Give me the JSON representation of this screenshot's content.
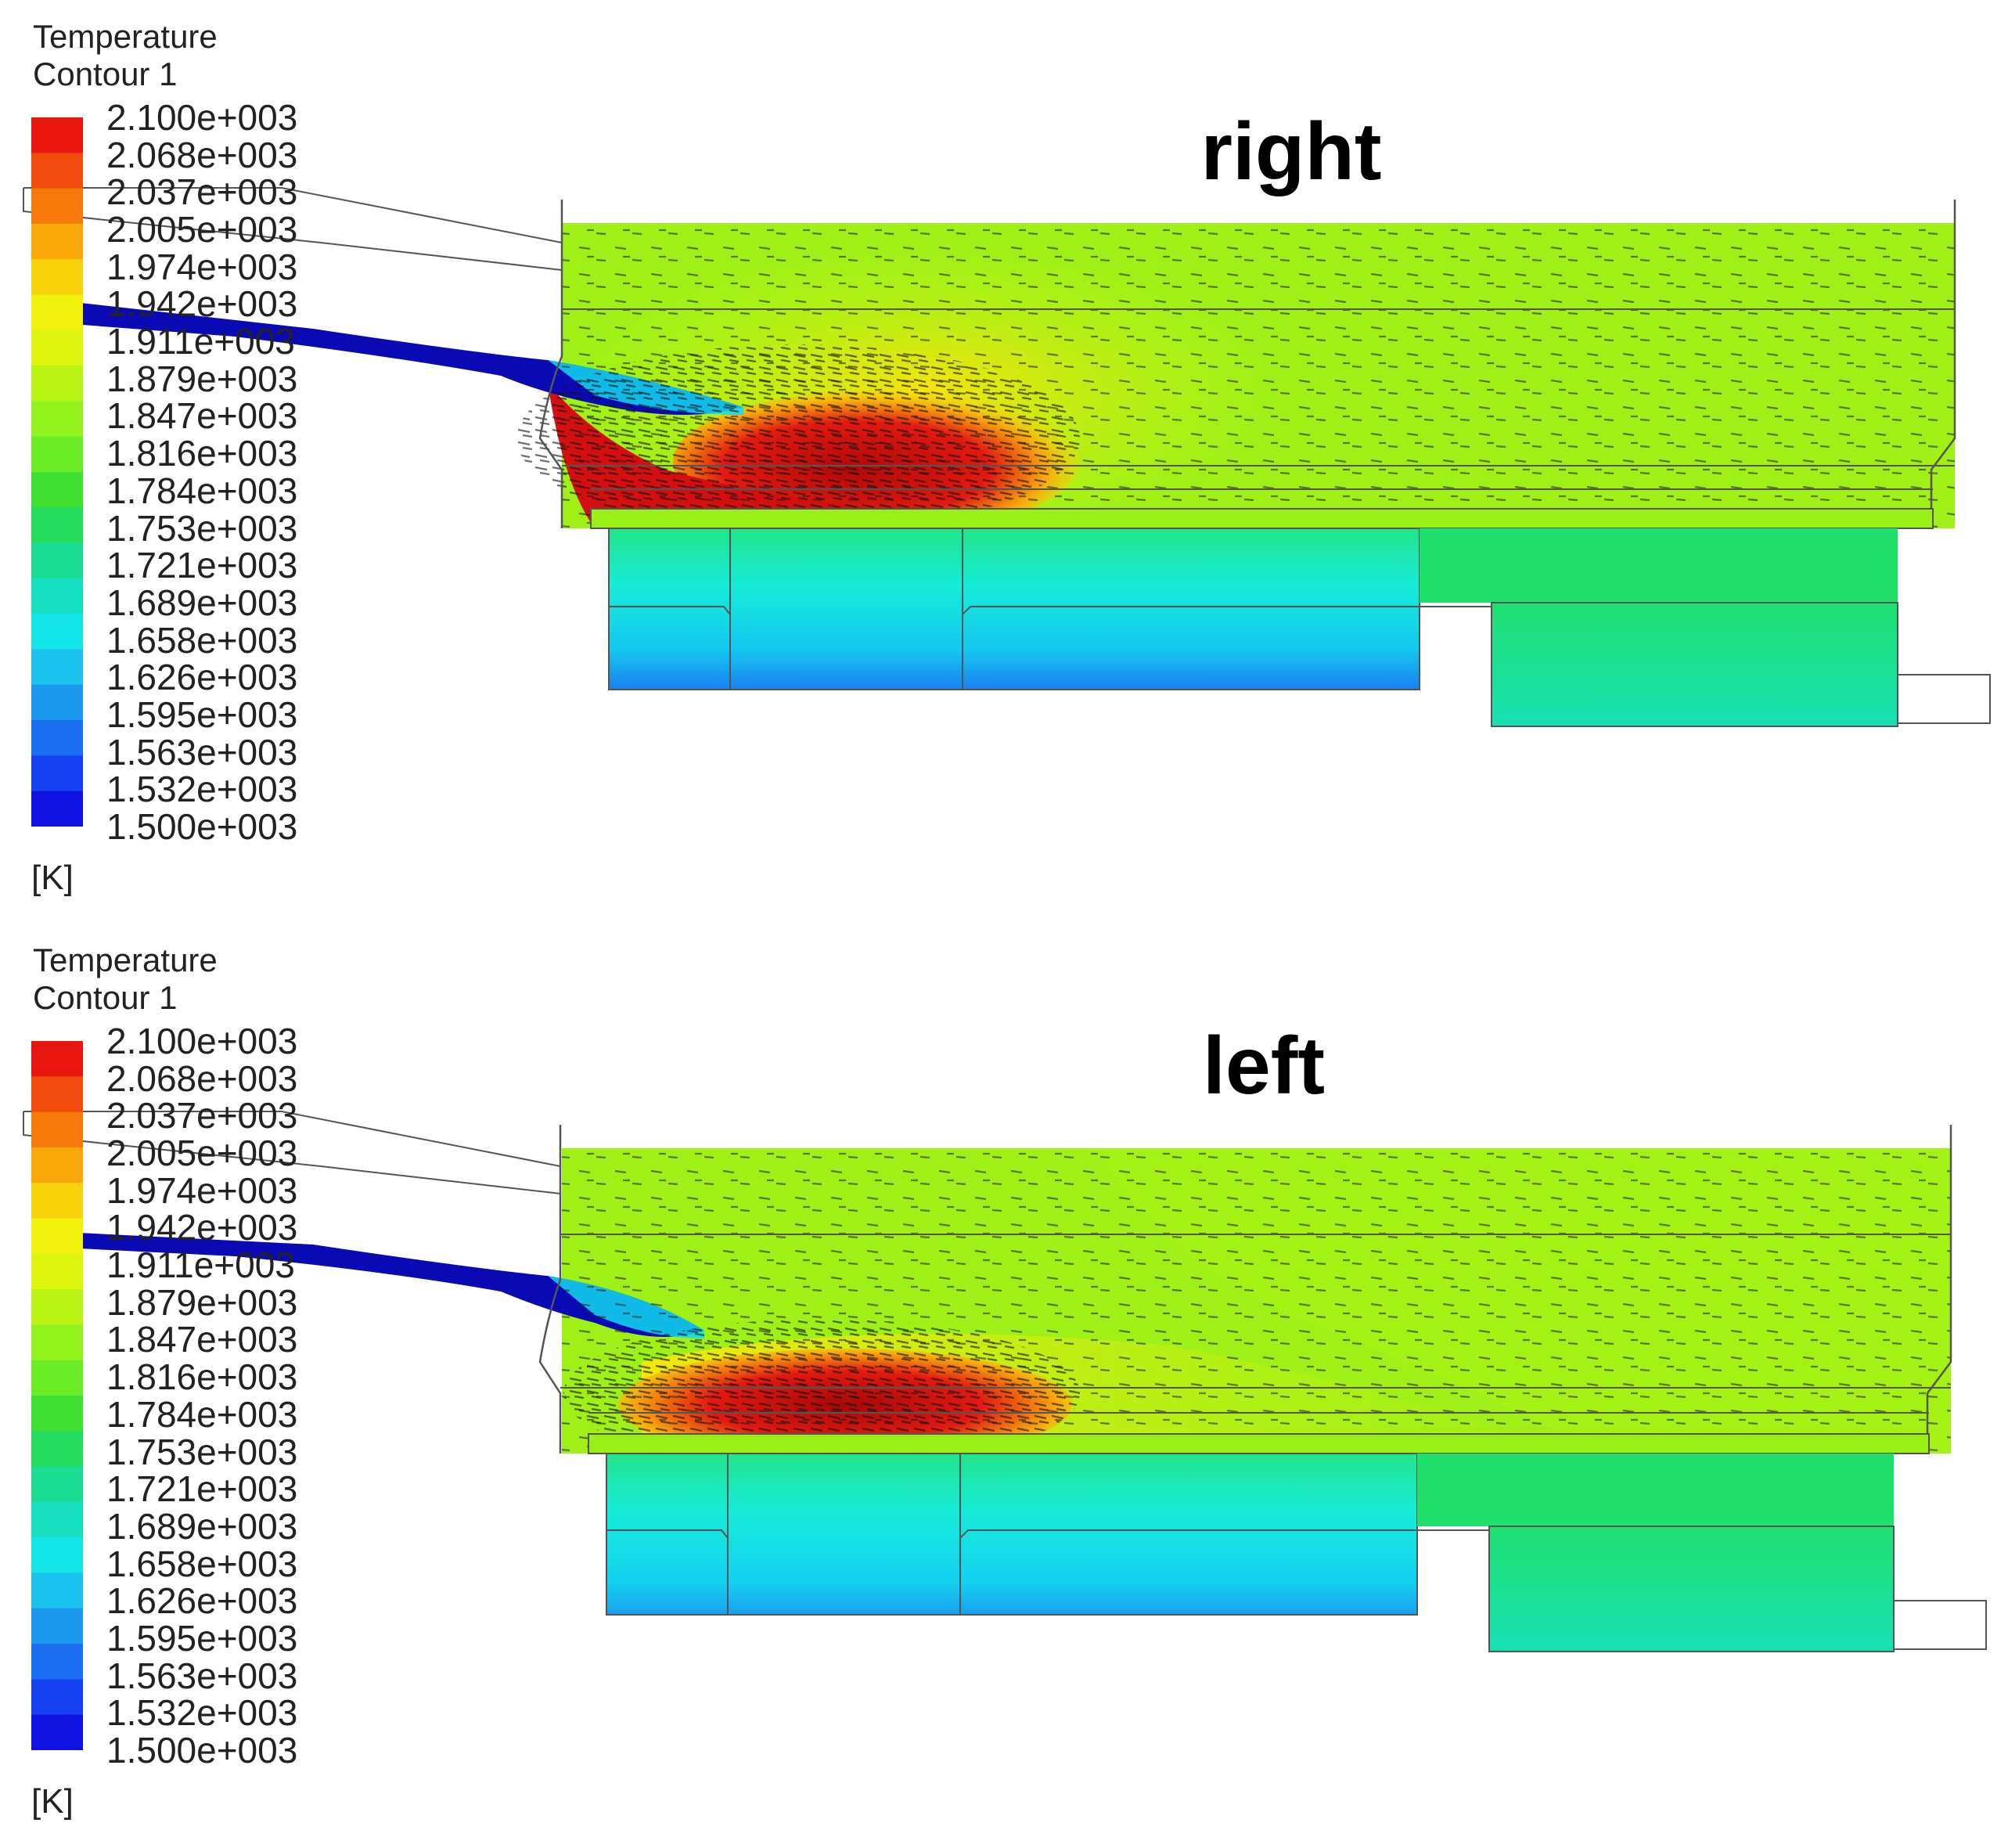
{
  "panels": [
    {
      "name": "right",
      "title": "right",
      "legend": {
        "title_line1": "Temperature",
        "title_line2": "Contour 1",
        "unit": "[K]",
        "ticks": [
          "2.100e+003",
          "2.068e+003",
          "2.037e+003",
          "2.005e+003",
          "1.974e+003",
          "1.942e+003",
          "1.911e+003",
          "1.879e+003",
          "1.847e+003",
          "1.816e+003",
          "1.784e+003",
          "1.753e+003",
          "1.721e+003",
          "1.689e+003",
          "1.658e+003",
          "1.626e+003",
          "1.595e+003",
          "1.563e+003",
          "1.532e+003",
          "1.500e+003"
        ]
      }
    },
    {
      "name": "left",
      "title": "left",
      "legend": {
        "title_line1": "Temperature",
        "title_line2": "Contour 1",
        "unit": "[K]",
        "ticks": [
          "2.100e+003",
          "2.068e+003",
          "2.037e+003",
          "2.005e+003",
          "1.974e+003",
          "1.942e+003",
          "1.911e+003",
          "1.879e+003",
          "1.847e+003",
          "1.816e+003",
          "1.784e+003",
          "1.753e+003",
          "1.721e+003",
          "1.689e+003",
          "1.658e+003",
          "1.626e+003",
          "1.595e+003",
          "1.563e+003",
          "1.532e+003",
          "1.500e+003"
        ]
      }
    }
  ],
  "colormap": [
    "#e8160f",
    "#f04a0c",
    "#f67a0a",
    "#fba80a",
    "#f8d20a",
    "#f1f20c",
    "#ddf50f",
    "#b9f414",
    "#92f21c",
    "#6aec26",
    "#3fe032",
    "#24dd5e",
    "#1adc92",
    "#16dfc1",
    "#12e4e8",
    "#1ac2ee",
    "#1c99ef",
    "#1a6ef0",
    "#1641f0",
    "#1010e0"
  ],
  "colors": {
    "furnace_bulk": "#9ff016",
    "hot_core": "#d90e0e",
    "hot_dark": "#7a0a0a",
    "inlet_jet": "#0a0aa8",
    "lower_green": "#18e06a",
    "lower_cyan": "#18eee6",
    "lower_blue": "#1870ef",
    "outline": "#555555",
    "vector": "#111111"
  }
}
